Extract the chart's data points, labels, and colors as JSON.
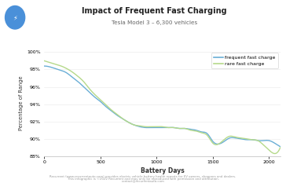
{
  "title": "Impact of Frequent Fast Charging",
  "subtitle": "Tesla Model 3 – 6,300 vehicles",
  "xlabel": "Battery Days",
  "ylabel": "Percentage of Range",
  "xlim": [
    0,
    2100
  ],
  "ylim": [
    0.882,
    1.002
  ],
  "yticks": [
    0.88,
    0.9,
    0.92,
    0.94,
    0.96,
    0.98,
    1.0
  ],
  "xticks": [
    0,
    500,
    1000,
    1500,
    2000
  ],
  "frequent_x": [
    0,
    50,
    100,
    150,
    200,
    250,
    300,
    350,
    400,
    450,
    500,
    550,
    600,
    650,
    700,
    750,
    800,
    850,
    900,
    950,
    1000,
    1050,
    1100,
    1150,
    1200,
    1250,
    1300,
    1350,
    1400,
    1450,
    1500,
    1550,
    1600,
    1650,
    1700,
    1750,
    1800,
    1850,
    1900,
    1950,
    2000,
    2050,
    2100
  ],
  "frequent_y": [
    0.984,
    0.983,
    0.981,
    0.979,
    0.976,
    0.971,
    0.966,
    0.96,
    0.954,
    0.948,
    0.943,
    0.937,
    0.932,
    0.927,
    0.923,
    0.919,
    0.916,
    0.914,
    0.913,
    0.913,
    0.913,
    0.913,
    0.913,
    0.913,
    0.912,
    0.912,
    0.911,
    0.91,
    0.908,
    0.906,
    0.897,
    0.894,
    0.897,
    0.901,
    0.901,
    0.9,
    0.899,
    0.899,
    0.898,
    0.898,
    0.898,
    0.895,
    0.891
  ],
  "rare_x": [
    0,
    50,
    100,
    150,
    200,
    250,
    300,
    350,
    400,
    450,
    500,
    550,
    600,
    650,
    700,
    750,
    800,
    850,
    900,
    950,
    1000,
    1050,
    1100,
    1150,
    1200,
    1250,
    1300,
    1350,
    1400,
    1450,
    1500,
    1550,
    1600,
    1650,
    1700,
    1750,
    1800,
    1850,
    1900,
    1950,
    2000,
    2050,
    2100
  ],
  "rare_y": [
    0.99,
    0.988,
    0.986,
    0.984,
    0.981,
    0.977,
    0.972,
    0.966,
    0.958,
    0.951,
    0.945,
    0.939,
    0.933,
    0.928,
    0.923,
    0.919,
    0.916,
    0.915,
    0.914,
    0.914,
    0.914,
    0.914,
    0.913,
    0.913,
    0.912,
    0.912,
    0.91,
    0.909,
    0.907,
    0.904,
    0.895,
    0.894,
    0.899,
    0.903,
    0.902,
    0.901,
    0.9,
    0.899,
    0.898,
    0.893,
    0.887,
    0.883,
    0.89
  ],
  "frequent_color": "#6aaed6",
  "rare_color": "#b5d98a",
  "background_color": "#ffffff",
  "footer_line1": "Recurrent (www.recurrentauto.com) provides electric vehicle battery health reports for EV owners, shoppers and dealers.",
  "footer_line2": "This infographic is ©2022 Recurrent and may only be reproduced with permission and attribution.",
  "footer_line3": "contact@recurrentauto.com",
  "icon_color": "#4a90d9",
  "legend_labels": [
    "frequent fast charge",
    "rare fast charge"
  ]
}
